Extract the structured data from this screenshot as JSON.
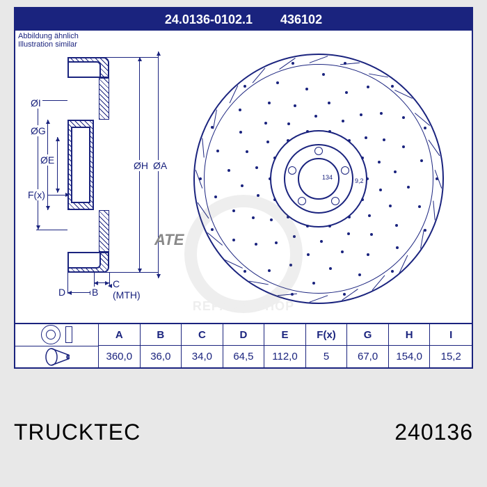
{
  "header": {
    "part_full": "24.0136-0102.1",
    "part_short": "436102",
    "subtitle_de": "Abbildung ähnlich",
    "subtitle_en": "Illustration similar"
  },
  "cross_section": {
    "labels": {
      "I": "ØI",
      "G": "ØG",
      "E": "ØE",
      "H": "ØH",
      "A": "ØA",
      "F": "F(x)",
      "D": "D",
      "B": "B",
      "C": "C (MTH)"
    },
    "colors": {
      "line": "#1a237e",
      "bg": "#ffffff"
    }
  },
  "disc": {
    "center_num": "134",
    "radius_num": "9,2",
    "bolt_count": 5,
    "logo": "ATE"
  },
  "table": {
    "headers": [
      "A",
      "B",
      "C",
      "D",
      "E",
      "F(x)",
      "G",
      "H",
      "I"
    ],
    "values": [
      "360,0",
      "36,0",
      "34,0",
      "64,5",
      "112,0",
      "5",
      "67,0",
      "154,0",
      "15,2"
    ]
  },
  "watermark": {
    "text": "REPARATSHOP"
  },
  "footer": {
    "brand": "TRUCKTEC",
    "code": "240136"
  }
}
